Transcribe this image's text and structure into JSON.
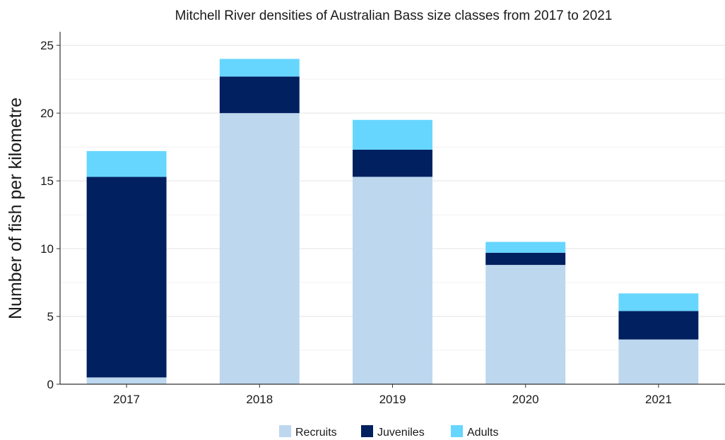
{
  "chart_data": {
    "type": "bar",
    "stacked": true,
    "title": "Mitchell River densities of Australian Bass size classes from 2017 to 2021",
    "xlabel": "",
    "ylabel": "Number of fish per kilometre",
    "categories": [
      "2017",
      "2018",
      "2019",
      "2020",
      "2021"
    ],
    "ylim": [
      0,
      26
    ],
    "yticks": [
      0,
      5,
      10,
      15,
      20,
      25
    ],
    "grid": true,
    "legend_position": "bottom",
    "series": [
      {
        "name": "Recruits",
        "color": "#bdd7ee",
        "values": [
          0.5,
          20.0,
          15.3,
          8.8,
          3.3
        ]
      },
      {
        "name": "Juveniles",
        "color": "#002060",
        "values": [
          14.8,
          2.7,
          2.0,
          0.9,
          2.1
        ]
      },
      {
        "name": "Adults",
        "color": "#66d6ff",
        "values": [
          1.9,
          1.3,
          2.2,
          0.8,
          1.3
        ]
      }
    ]
  }
}
